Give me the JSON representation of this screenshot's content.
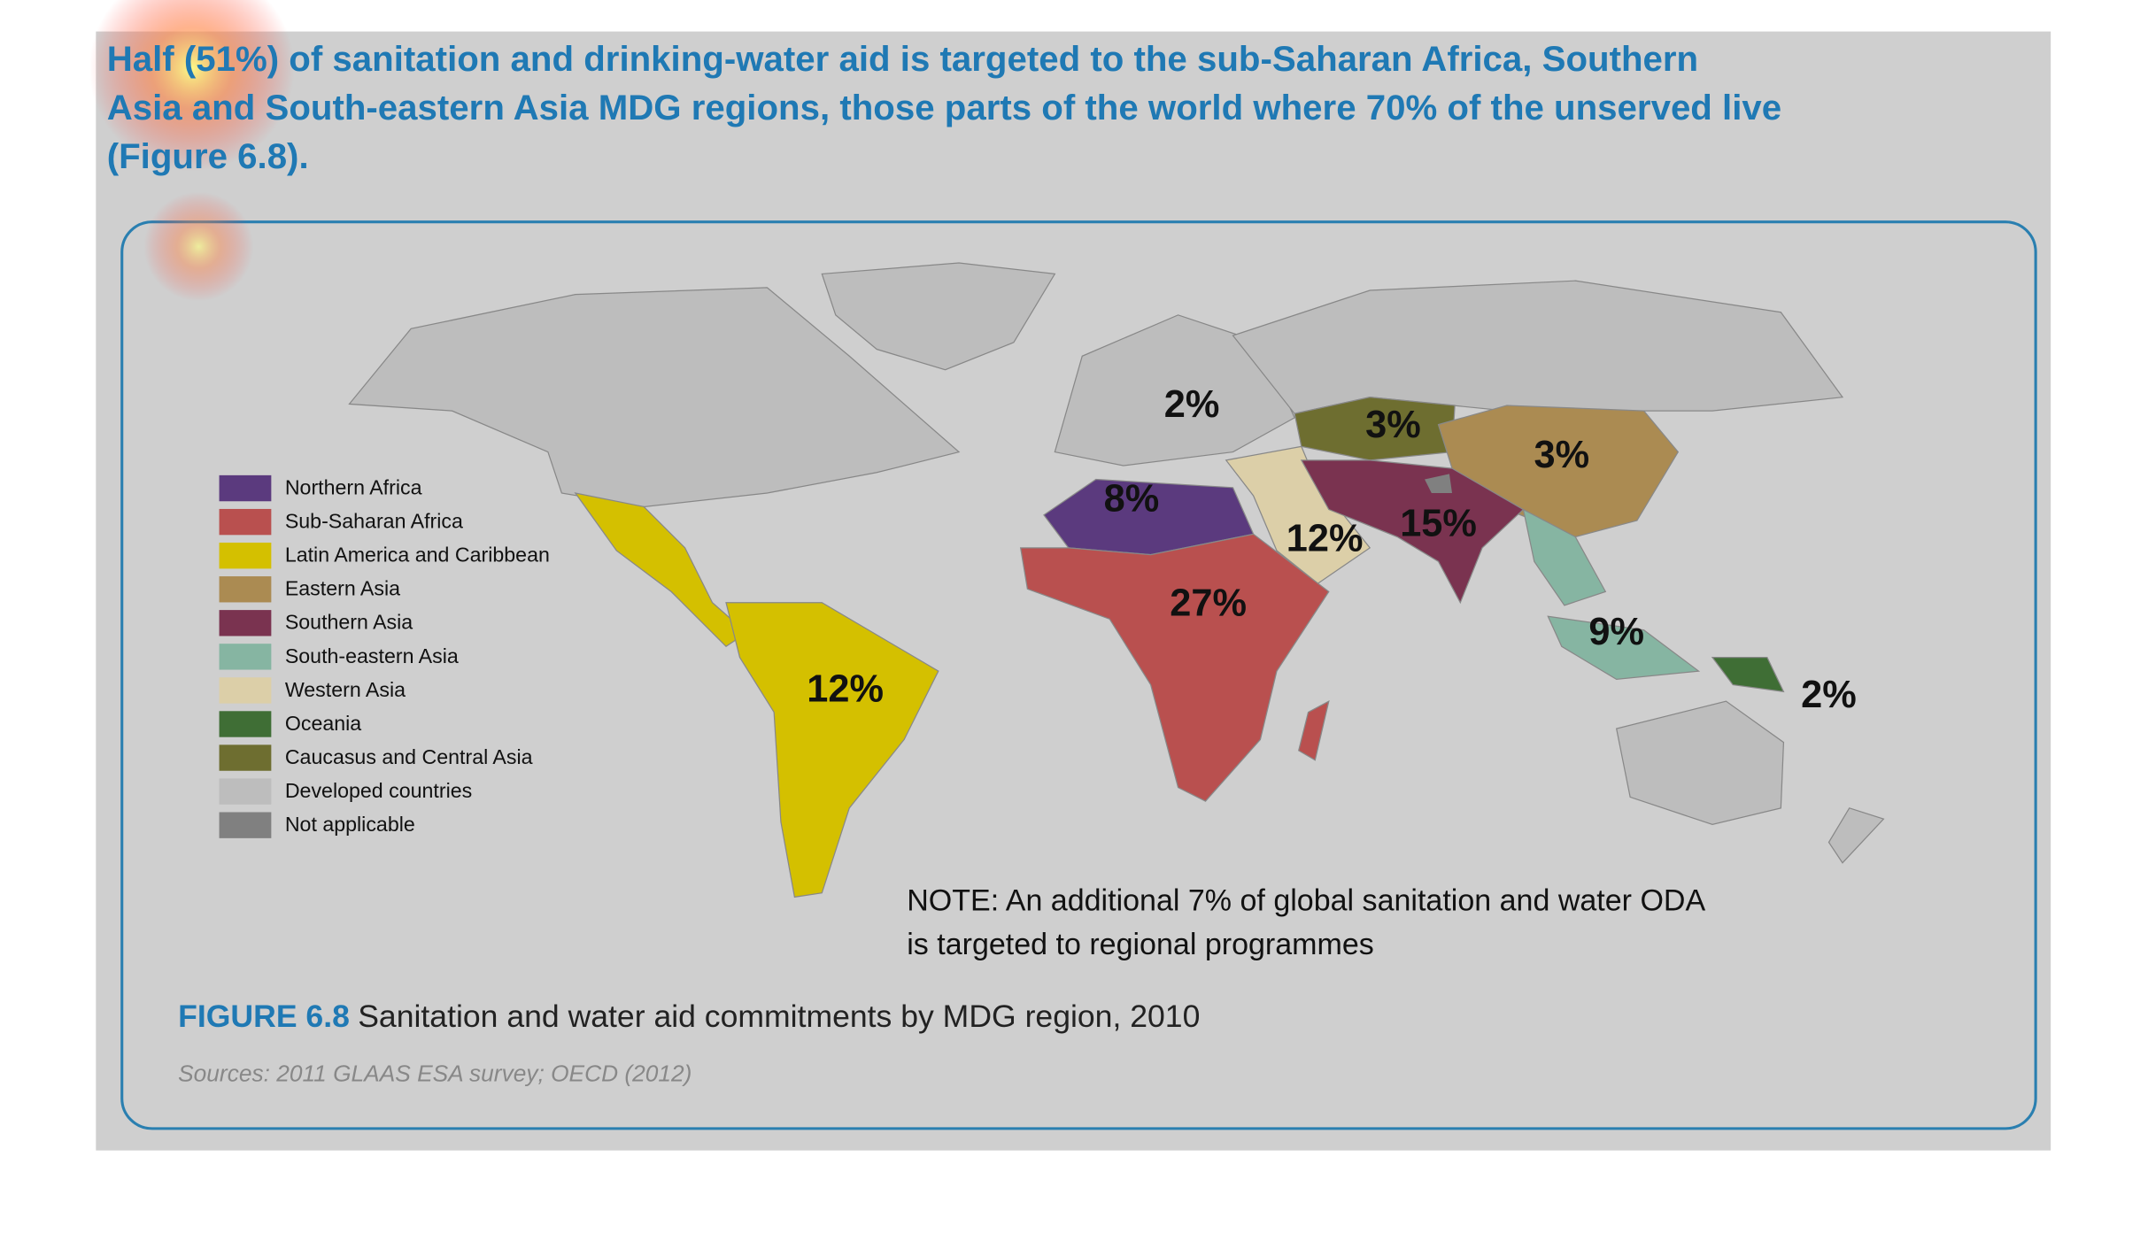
{
  "header": {
    "lines": [
      "Half (51%) of sanitation and drinking-water aid is targeted to the sub-Saharan Africa, Southern",
      "Asia and South-eastern Asia MDG regions, those parts of the world where 70% of the unserved live",
      "(Figure 6.8)."
    ]
  },
  "legend": [
    {
      "label": "Northern Africa",
      "color": "#5b3a7e"
    },
    {
      "label": "Sub-Saharan Africa",
      "color": "#b9504f"
    },
    {
      "label": "Latin America and Caribbean",
      "color": "#d4c000"
    },
    {
      "label": "Eastern Asia",
      "color": "#ab8b52"
    },
    {
      "label": "Southern Asia",
      "color": "#7a3350"
    },
    {
      "label": "South-eastern Asia",
      "color": "#86b5a2"
    },
    {
      "label": "Western Asia",
      "color": "#dccfa8"
    },
    {
      "label": "Oceania",
      "color": "#3f6e35"
    },
    {
      "label": "Caucasus and Central Asia",
      "color": "#6e6e30"
    },
    {
      "label": "Developed countries",
      "color": "#bdbdbd"
    },
    {
      "label": "Not applicable",
      "color": "#808080"
    }
  ],
  "map_labels": [
    "2%",
    "3%",
    "3%",
    "8%",
    "12%",
    "15%",
    "27%",
    "12%",
    "9%",
    "2%"
  ],
  "note": {
    "lines": [
      "NOTE: An additional 7% of global sanitation and water ODA",
      "is targeted to regional programmes"
    ]
  },
  "figure": {
    "number": "FIGURE 6.8",
    "title": "Sanitation and water aid commitments by MDG region, 2010"
  },
  "sources": "Sources: 2011 GLAAS ESA survey; OECD (2012)"
}
